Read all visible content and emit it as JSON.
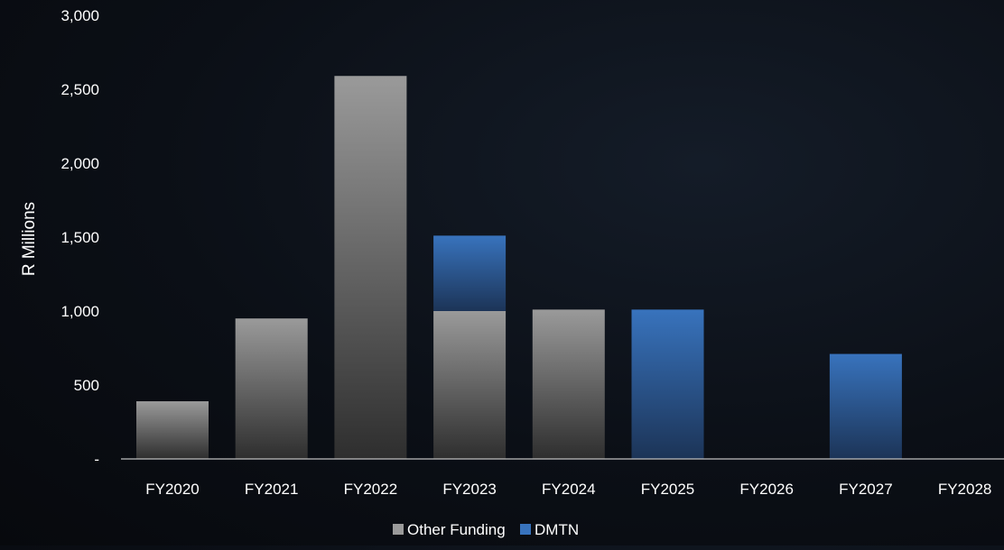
{
  "chart_data": {
    "type": "bar",
    "stacked": true,
    "categories": [
      "FY2020",
      "FY2021",
      "FY2022",
      "FY2023",
      "FY2024",
      "FY2025",
      "FY2026",
      "FY2027",
      "FY2028"
    ],
    "series": [
      {
        "name": "Other Funding",
        "values": [
          390,
          950,
          2590,
          1000,
          1010,
          0,
          0,
          0,
          0
        ]
      },
      {
        "name": "DMTN",
        "values": [
          0,
          0,
          0,
          510,
          0,
          1010,
          0,
          710,
          0
        ]
      }
    ],
    "title": "",
    "xlabel": "",
    "ylabel": "R Millions",
    "ylim": [
      0,
      3000
    ],
    "yticks": [
      {
        "value": 0,
        "label": "-"
      },
      {
        "value": 500,
        "label": "500"
      },
      {
        "value": 1000,
        "label": "1,000"
      },
      {
        "value": 1500,
        "label": "1,500"
      },
      {
        "value": 2000,
        "label": "2,000"
      },
      {
        "value": 2500,
        "label": "2,500"
      },
      {
        "value": 3000,
        "label": "3,000"
      }
    ],
    "grid": false,
    "legend_position": "bottom-center",
    "colors": {
      "other_funding_top": "#9a9a9a",
      "other_funding_bottom": "#2e2e2e",
      "dmtn_top": "#3873bd",
      "dmtn_bottom": "#1c3457",
      "text": "#ffffff",
      "axis": "#bfbfbf"
    }
  }
}
